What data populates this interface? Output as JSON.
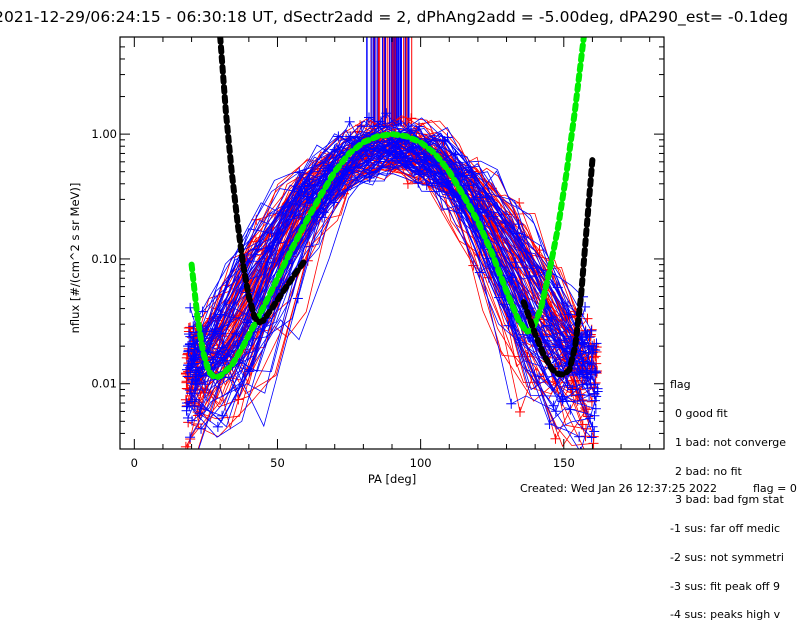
{
  "chart_data": {
    "type": "line",
    "title": "2021-12-29/06:24:15 - 06:30:18 UT, dSectr2add = 2, dPhAng2add = -5.00deg, dPA290_est=  -0.1deg",
    "xlabel": "PA [deg]",
    "ylabel": "nflux [#/(cm^2 s sr MeV)]",
    "xlim": [
      -5,
      185
    ],
    "ylim": [
      0.003,
      6.0
    ],
    "yscale": "log",
    "x_ticks": [
      0,
      50,
      100,
      150
    ],
    "x_tick_labels": [
      "0",
      "50",
      "100",
      "150"
    ],
    "y_ticks": [
      0.01,
      0.1,
      1.0
    ],
    "y_tick_labels": [
      "0.01",
      "0.10",
      "1.00"
    ],
    "grid": false,
    "series": [
      {
        "name": "fit-green",
        "color": "#00ee00",
        "style": "thick-dashed",
        "x": [
          20,
          22,
          24,
          26,
          28,
          30,
          34,
          38,
          42,
          46,
          50,
          55,
          60,
          65,
          70,
          75,
          80,
          85,
          90,
          95,
          100,
          105,
          110,
          115,
          120,
          125,
          130,
          134,
          137,
          139,
          142,
          145,
          148,
          151,
          154,
          157
        ],
        "y": [
          0.09,
          0.035,
          0.018,
          0.0125,
          0.0112,
          0.0115,
          0.014,
          0.02,
          0.03,
          0.045,
          0.07,
          0.12,
          0.2,
          0.32,
          0.5,
          0.7,
          0.86,
          0.96,
          1.0,
          0.96,
          0.86,
          0.7,
          0.5,
          0.32,
          0.2,
          0.11,
          0.055,
          0.033,
          0.026,
          0.027,
          0.04,
          0.08,
          0.18,
          0.5,
          1.6,
          6.0
        ]
      },
      {
        "name": "fit-black",
        "color": "#000000",
        "style": "thick-dashed",
        "x": [
          30,
          32,
          34,
          36,
          38,
          40,
          42,
          43.5,
          45,
          48,
          52,
          56,
          60,
          136,
          140,
          143,
          146,
          148,
          150,
          152,
          154,
          156,
          158,
          160
        ],
        "y": [
          6.0,
          1.5,
          0.5,
          0.2,
          0.09,
          0.05,
          0.034,
          0.031,
          0.032,
          0.04,
          0.055,
          0.075,
          0.1,
          0.045,
          0.025,
          0.017,
          0.013,
          0.012,
          0.0118,
          0.013,
          0.02,
          0.05,
          0.18,
          0.62
        ]
      }
    ],
    "data_traces": {
      "colors": [
        "#ff0000",
        "#0000ff"
      ],
      "description_peak_pa": 90,
      "pa_range": [
        18,
        162
      ],
      "count_per_color": 70
    },
    "vertical_markers": {
      "pa_range": [
        81,
        101
      ],
      "colors": [
        "#0000ff",
        "#ff0000"
      ],
      "y_range": [
        1.15,
        6.0
      ]
    },
    "legend": {
      "title": "flag",
      "entries": [
        "0 good fit",
        "1 bad: not converge",
        "2 bad: no fit",
        "3 bad: bad fgm stat",
        "-1 sus: far off medic",
        "-2 sus: not symmetri",
        "-3 sus: fit peak off 9",
        "-4 sus: peaks high v"
      ]
    }
  },
  "footer": {
    "created": "Created: Wed Jan 26 12:37:25 2022",
    "flag": "flag = 0"
  }
}
